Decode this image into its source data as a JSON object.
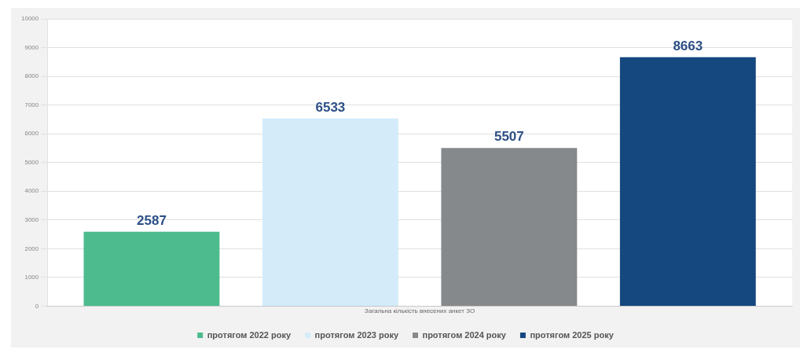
{
  "chart_data": {
    "type": "bar",
    "categories": [
      "Загальна кількість внесених анкет ЗО"
    ],
    "series": [
      {
        "name": "протягом 2022 року",
        "color": "#4dbb8e",
        "values": [
          2587
        ]
      },
      {
        "name": "протягом 2023 року",
        "color": "#d4ecfa",
        "values": [
          6533
        ]
      },
      {
        "name": "протягом 2024 року",
        "color": "#86898b",
        "values": [
          5507
        ]
      },
      {
        "name": "протягом 2025 року",
        "color": "#15487f",
        "values": [
          8663
        ]
      }
    ],
    "ylim": [
      0,
      10000
    ],
    "yticks": [
      0,
      1000,
      2000,
      3000,
      4000,
      5000,
      6000,
      7000,
      8000,
      9000,
      10000
    ],
    "grid": "y",
    "legend": "bottom",
    "data_labels": true
  }
}
